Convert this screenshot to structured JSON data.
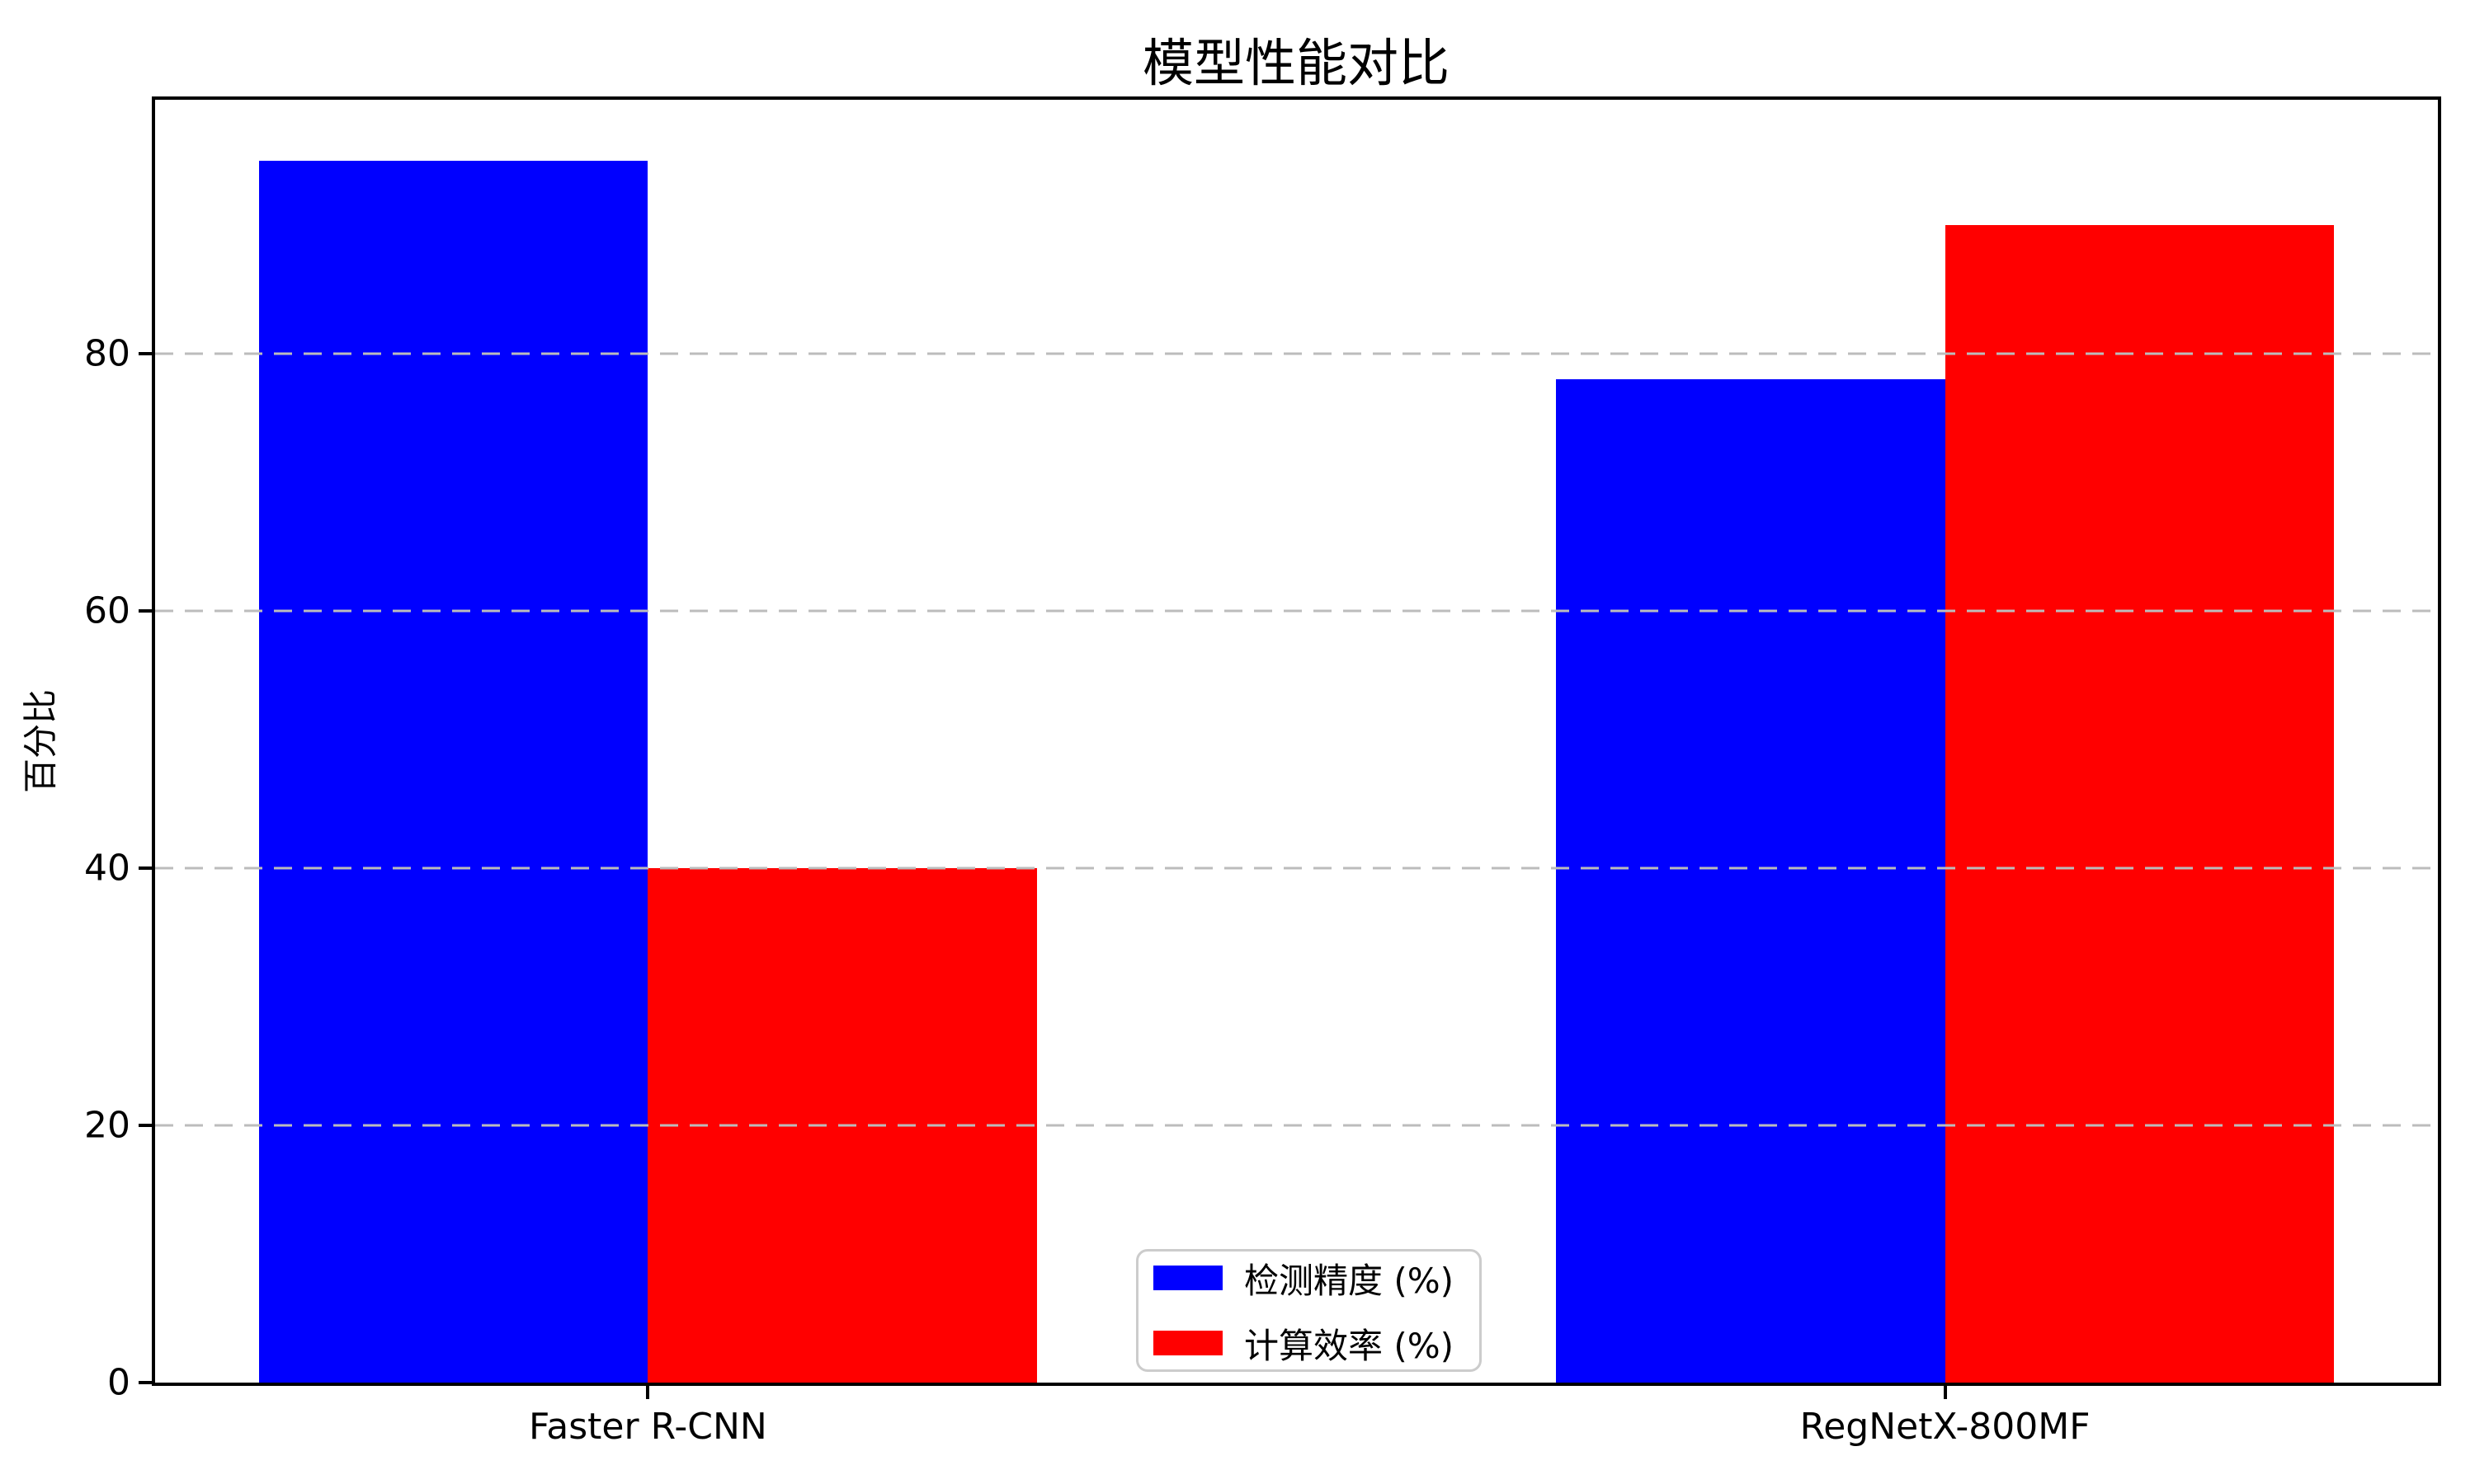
{
  "chart_data": {
    "type": "bar",
    "title": "模型性能对比",
    "xlabel": "",
    "ylabel": "百分比",
    "categories": [
      "Faster R-CNN",
      "RegNetX-800MF"
    ],
    "series": [
      {
        "name": "检测精度 (%)",
        "color": "#0000ff",
        "values": [
          95,
          78
        ]
      },
      {
        "name": "计算效率 (%)",
        "color": "#ff0000",
        "values": [
          40,
          90
        ]
      }
    ],
    "yticks": [
      0,
      20,
      40,
      60,
      80
    ],
    "ylim": [
      0,
      99.75
    ],
    "xlim": [
      -0.38,
      1.38
    ],
    "bar_width": 0.3,
    "bar_offsets": [
      -0.15,
      0.15
    ],
    "grid": "horizontal dashed gridlines at y ticks > 0, drawn above bars",
    "grid_color": "#bcbcbc",
    "legend_position": "lower center",
    "axis_color": "#000000",
    "background_color": "#ffffff"
  }
}
